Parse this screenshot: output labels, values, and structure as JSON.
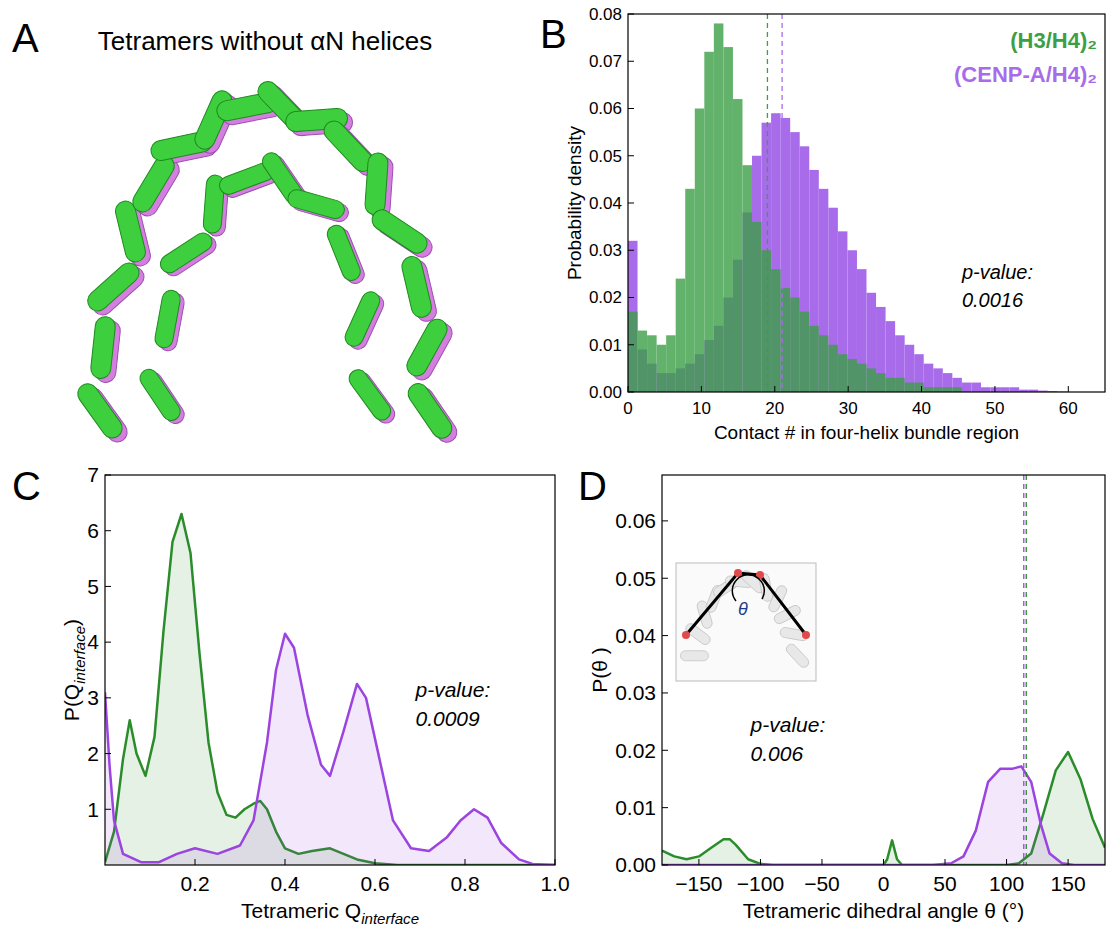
{
  "panel_a": {
    "letter": "A",
    "title": "Tetramers without αN helices"
  },
  "chart_data": [
    {
      "panel": "B",
      "type": "histogram",
      "xlabel": "Contact # in four-helix bundle region",
      "ylabel": "Probability density",
      "bins": [
        0,
        1.3,
        2.6,
        3.9,
        5.2,
        6.5,
        7.8,
        9.1,
        10.4,
        11.7,
        13,
        14.3,
        15.6,
        16.9,
        18.2,
        19.5,
        20.8,
        22.1,
        23.4,
        24.7,
        26,
        27.3,
        28.6,
        29.9,
        31.2,
        32.5,
        33.8,
        35.1,
        36.4,
        37.7,
        39,
        40.3,
        41.6,
        42.9,
        44.2,
        45.5,
        46.8,
        48.1,
        49.4,
        50.7,
        52,
        53.3,
        54.6,
        55.9,
        57.2,
        58.5,
        59.8,
        61.1,
        62.4,
        63.7,
        65
      ],
      "xlim": [
        0,
        65
      ],
      "ylim": [
        0,
        0.08
      ],
      "xticks": [
        0,
        10,
        20,
        30,
        40,
        50,
        60
      ],
      "yticks": [
        {
          "value": 0,
          "label": "0.00"
        },
        {
          "value": 0.01,
          "label": "0.01"
        },
        {
          "value": 0.02,
          "label": "0.02"
        },
        {
          "value": 0.03,
          "label": "0.03"
        },
        {
          "value": 0.04,
          "label": "0.04"
        },
        {
          "value": 0.05,
          "label": "0.05"
        },
        {
          "value": 0.06,
          "label": "0.06"
        },
        {
          "value": 0.07,
          "label": "0.07"
        },
        {
          "value": 0.08,
          "label": "0.08"
        }
      ],
      "legend": "upper right",
      "annotation": [
        "p-value:",
        "0.0016"
      ],
      "series": [
        {
          "name": "(H3/H4)₂",
          "color": "#3c9f48",
          "mean": 19,
          "values": [
            0.017,
            0.013,
            0.012,
            0.01,
            0.012,
            0.024,
            0.043,
            0.06,
            0.072,
            0.078,
            0.073,
            0.062,
            0.048,
            0.036,
            0.03,
            0.026,
            0.022,
            0.02,
            0.017,
            0.014,
            0.012,
            0.01,
            0.008,
            0.007,
            0.006,
            0.005,
            0.004,
            0.003,
            0.003,
            0.002,
            0.002,
            0.001,
            0.001,
            0.001,
            0.001,
            0,
            0,
            0,
            0,
            0,
            0,
            0,
            0,
            0,
            0,
            0,
            0,
            0,
            0,
            0
          ]
        },
        {
          "name": "(CENP-A/H4)₂",
          "color": "#a86ceb",
          "mean": 21,
          "values": [
            0.032,
            0.009,
            0.006,
            0.004,
            0.004,
            0.005,
            0.006,
            0.008,
            0.011,
            0.014,
            0.02,
            0.028,
            0.038,
            0.05,
            0.057,
            0.059,
            0.058,
            0.055,
            0.052,
            0.047,
            0.043,
            0.039,
            0.034,
            0.03,
            0.026,
            0.021,
            0.018,
            0.015,
            0.012,
            0.01,
            0.008,
            0.006,
            0.005,
            0.004,
            0.003,
            0.002,
            0.002,
            0.001,
            0.001,
            0.001,
            0.001,
            0.0005,
            0.0005,
            0.0003,
            0.0002,
            0.0001,
            0,
            0,
            0,
            0
          ]
        }
      ]
    },
    {
      "panel": "C",
      "type": "area",
      "xlabel": [
        {
          "text": "Tetrameric Q"
        },
        {
          "text": "interface",
          "sub": true
        }
      ],
      "ylabel": [
        {
          "text": "P(Q"
        },
        {
          "text": "interface",
          "sub": true
        },
        {
          "text": ")"
        }
      ],
      "xlim": [
        0,
        1
      ],
      "ylim": [
        0,
        7
      ],
      "xticks": [
        0.2,
        0.4,
        0.6,
        0.8,
        {
          "value": 1,
          "label": "1.0"
        }
      ],
      "yticks": [
        1,
        2,
        3,
        4,
        5,
        6,
        7
      ],
      "annotation": [
        "p-value:",
        "0.0009"
      ],
      "series": [
        {
          "color": "#2a8c2a",
          "x": [
            0,
            0.02,
            0.04,
            0.055,
            0.07,
            0.09,
            0.11,
            0.13,
            0.15,
            0.17,
            0.19,
            0.21,
            0.23,
            0.25,
            0.27,
            0.29,
            0.31,
            0.33,
            0.345,
            0.36,
            0.38,
            0.4,
            0.43,
            0.46,
            0.5,
            0.53,
            0.56,
            0.6,
            0.65,
            0.7,
            1.0
          ],
          "values": [
            0.05,
            0.6,
            1.9,
            2.6,
            2.0,
            1.6,
            2.3,
            4.2,
            5.8,
            6.3,
            5.6,
            3.8,
            2.2,
            1.3,
            0.9,
            0.85,
            1.0,
            1.1,
            1.15,
            1.0,
            0.6,
            0.3,
            0.2,
            0.25,
            0.3,
            0.2,
            0.1,
            0.03,
            0,
            0,
            0
          ]
        },
        {
          "color": "#9b44e0",
          "x": [
            0,
            0.01,
            0.02,
            0.04,
            0.08,
            0.12,
            0.16,
            0.2,
            0.25,
            0.3,
            0.33,
            0.36,
            0.38,
            0.4,
            0.42,
            0.45,
            0.48,
            0.5,
            0.53,
            0.56,
            0.58,
            0.61,
            0.64,
            0.68,
            0.72,
            0.76,
            0.79,
            0.82,
            0.85,
            0.88,
            0.92,
            0.95,
            1.0
          ],
          "values": [
            3.1,
            1.8,
            0.8,
            0.2,
            0.05,
            0.05,
            0.2,
            0.3,
            0.2,
            0.35,
            0.8,
            2.2,
            3.5,
            4.15,
            3.9,
            2.7,
            1.8,
            1.6,
            2.4,
            3.25,
            3.0,
            1.9,
            0.8,
            0.3,
            0.25,
            0.5,
            0.8,
            1.0,
            0.85,
            0.4,
            0.1,
            0.02,
            0
          ]
        }
      ]
    },
    {
      "panel": "D",
      "type": "area",
      "xlabel": "Tetrameric dihedral angle θ (°)",
      "ylabel": "P(θ )",
      "xlim": [
        -180,
        180
      ],
      "ylim": [
        0,
        0.068
      ],
      "xticks": [
        {
          "value": -150,
          "label": "−150"
        },
        {
          "value": -100,
          "label": "−100"
        },
        {
          "value": -50,
          "label": "−50"
        },
        0,
        50,
        100,
        150
      ],
      "yticks": [
        {
          "value": 0,
          "label": "0.00"
        },
        {
          "value": 0.01,
          "label": "0.01"
        },
        {
          "value": 0.02,
          "label": "0.02"
        },
        {
          "value": 0.03,
          "label": "0.03"
        },
        {
          "value": 0.04,
          "label": "0.04"
        },
        {
          "value": 0.05,
          "label": "0.05"
        },
        {
          "value": 0.06,
          "label": "0.06"
        }
      ],
      "annotation": [
        "p-value:",
        "0.006"
      ],
      "inset_label": "θ",
      "series": [
        {
          "color": "#2a8c2a",
          "mean": 116,
          "x": [
            -180,
            -170,
            -160,
            -150,
            -140,
            -130,
            -125,
            -120,
            -110,
            -100,
            -90,
            0,
            3,
            7,
            11,
            15,
            100,
            110,
            120,
            130,
            140,
            150,
            160,
            170,
            180
          ],
          "values": [
            0.0025,
            0.0015,
            0.001,
            0.0015,
            0.003,
            0.0045,
            0.0045,
            0.0035,
            0.001,
            0.0002,
            0,
            0,
            0.001,
            0.0043,
            0.001,
            0,
            0,
            0.0003,
            0.002,
            0.009,
            0.0165,
            0.0197,
            0.015,
            0.008,
            0.003
          ]
        },
        {
          "color": "#9b44e0",
          "mean": 114,
          "x": [
            -180,
            40,
            55,
            65,
            75,
            85,
            95,
            105,
            112,
            120,
            128,
            135,
            145,
            155,
            180
          ],
          "values": [
            0,
            0,
            0.0003,
            0.0015,
            0.006,
            0.0145,
            0.0168,
            0.0168,
            0.0172,
            0.0145,
            0.007,
            0.002,
            0.0003,
            0,
            0
          ]
        }
      ]
    }
  ]
}
